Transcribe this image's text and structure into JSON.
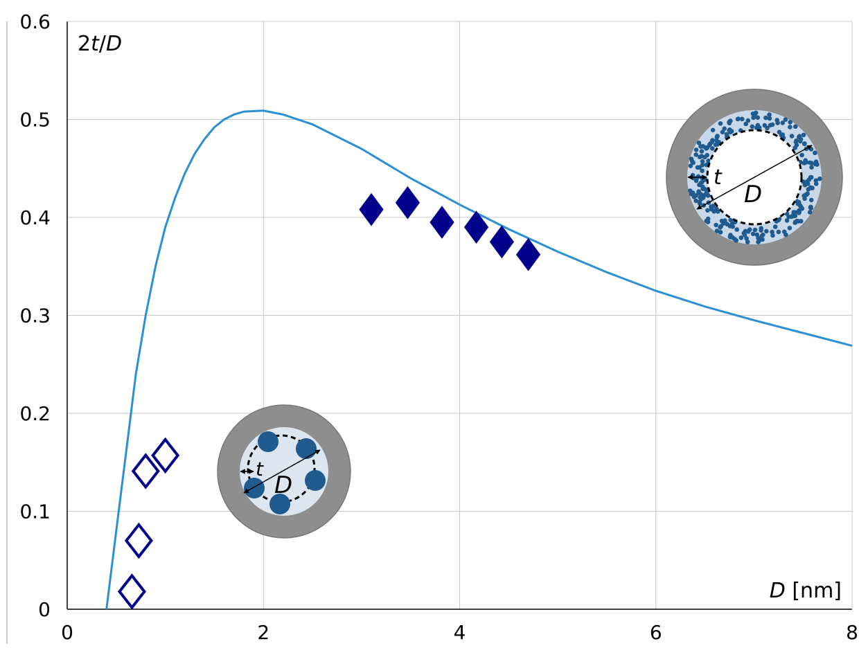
{
  "chart_data": {
    "type": "scatter",
    "xlabel": "D [nm]",
    "ylabel": "2t/D",
    "xlim": [
      0,
      8
    ],
    "ylim": [
      0,
      0.6
    ],
    "x_ticks": [
      "0",
      "2",
      "4",
      "6",
      "8"
    ],
    "y_ticks": [
      "0",
      "0.1",
      "0.2",
      "0.3",
      "0.4",
      "0.5",
      "0.6"
    ],
    "grid": true,
    "series": [
      {
        "kind": "line",
        "color": "#2b8fd6",
        "points": [
          [
            0.4,
            0.0
          ],
          [
            0.5,
            0.08
          ],
          [
            0.6,
            0.16
          ],
          [
            0.7,
            0.24
          ],
          [
            0.8,
            0.3
          ],
          [
            0.9,
            0.35
          ],
          [
            1.0,
            0.39
          ],
          [
            1.1,
            0.42
          ],
          [
            1.2,
            0.445
          ],
          [
            1.3,
            0.465
          ],
          [
            1.4,
            0.48
          ],
          [
            1.5,
            0.492
          ],
          [
            1.6,
            0.5
          ],
          [
            1.7,
            0.505
          ],
          [
            1.8,
            0.508
          ],
          [
            2.0,
            0.509
          ],
          [
            2.2,
            0.505
          ],
          [
            2.5,
            0.495
          ],
          [
            3.0,
            0.47
          ],
          [
            3.5,
            0.44
          ],
          [
            4.0,
            0.413
          ],
          [
            4.5,
            0.388
          ],
          [
            5.0,
            0.365
          ],
          [
            5.5,
            0.344
          ],
          [
            6.0,
            0.325
          ],
          [
            6.5,
            0.309
          ],
          [
            7.0,
            0.295
          ],
          [
            7.5,
            0.282
          ],
          [
            8.0,
            0.269
          ]
        ]
      },
      {
        "kind": "marker",
        "marker": "open-diamond",
        "color": "#00008b",
        "points": [
          [
            0.66,
            0.018
          ],
          [
            0.73,
            0.07
          ],
          [
            0.8,
            0.141
          ],
          [
            1.0,
            0.157
          ]
        ]
      },
      {
        "kind": "marker",
        "marker": "filled-diamond",
        "color": "#00008b",
        "points": [
          [
            3.1,
            0.408
          ],
          [
            3.47,
            0.415
          ],
          [
            3.82,
            0.395
          ],
          [
            4.17,
            0.39
          ],
          [
            4.43,
            0.375
          ],
          [
            4.7,
            0.362
          ]
        ]
      }
    ],
    "insets": [
      {
        "name": "small-pore-schematic",
        "labels": {
          "thickness": "t",
          "diameter": "D"
        }
      },
      {
        "name": "large-pore-schematic",
        "labels": {
          "thickness": "t",
          "diameter": "D"
        }
      }
    ]
  }
}
